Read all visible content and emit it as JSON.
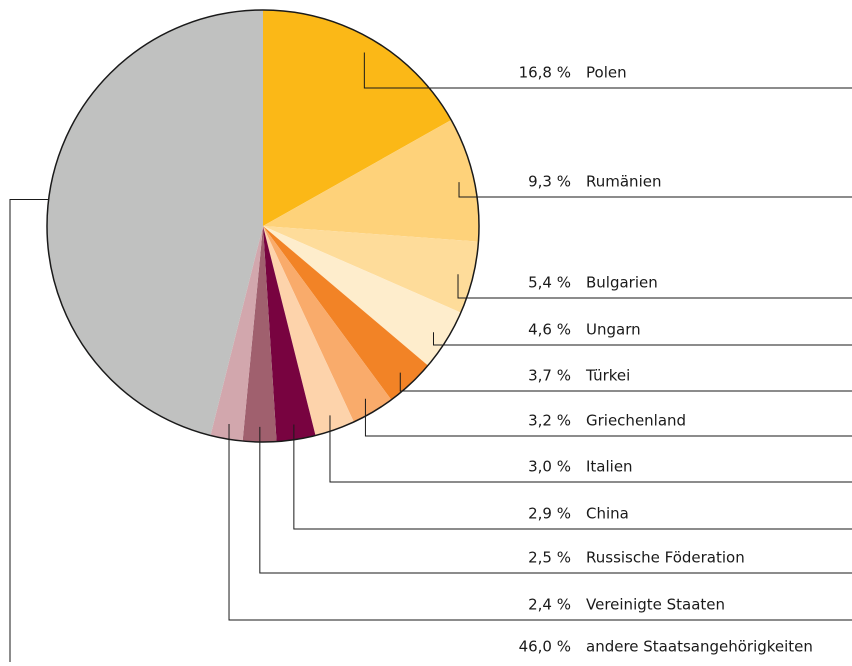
{
  "chart_data": {
    "type": "pie",
    "categories": [
      "Polen",
      "Rumänien",
      "Bulgarien",
      "Ungarn",
      "Türkei",
      "Griechenland",
      "Italien",
      "China",
      "Russische Föderation",
      "Vereinigte Staaten",
      "andere Staatsangehörigkeiten"
    ],
    "values": [
      16.8,
      9.3,
      5.4,
      4.6,
      3.7,
      3.2,
      3.0,
      2.9,
      2.5,
      2.4,
      46.0
    ],
    "value_labels": [
      "16,8 %",
      "9,3 %",
      "5,4 %",
      "4,6 %",
      "3,7 %",
      "3,2 %",
      "3,0 %",
      "2,9 %",
      "2,5 %",
      "2,4 %",
      "46,0 %"
    ],
    "colors": [
      "#fbb817",
      "#fed27a",
      "#fedc9a",
      "#feedcc",
      "#f28326",
      "#f9ab6b",
      "#fdd3ab",
      "#780340",
      "#a0606e",
      "#d2a7ad",
      "#c0c1c0"
    ]
  }
}
